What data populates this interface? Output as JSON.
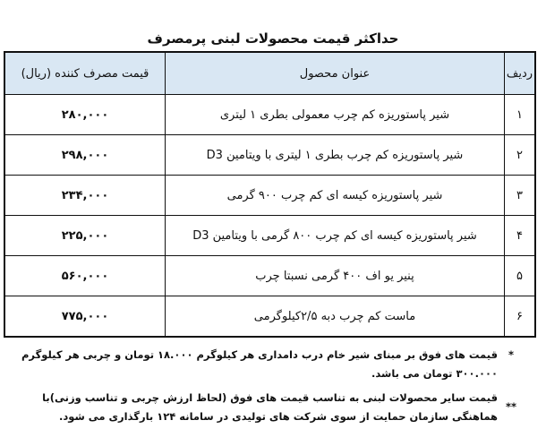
{
  "title": "حداکثر قیمت محصولات لبنی پرمصرف",
  "headers": {
    "row": "ردیف",
    "product": "عنوان محصول",
    "price": "قیمت مصرف کننده (ریال)"
  },
  "rows": [
    {
      "n": "۱",
      "product": "شیر پاستوریزه کم چرب معمولی بطری ۱ لیتری",
      "price": "۲۸۰,۰۰۰"
    },
    {
      "n": "۲",
      "product": "شیر پاستوریزه کم چرب  بطری ۱ لیتری با ویتامین D3",
      "price": "۲۹۸,۰۰۰"
    },
    {
      "n": "۳",
      "product": "شیر پاستوریزه کیسه ای کم چرب ۹۰۰ گرمی",
      "price": "۲۳۴,۰۰۰"
    },
    {
      "n": "۴",
      "product": "شیر پاستوریزه کیسه ای کم چرب ۸۰۰ گرمی  با ویتامین D3",
      "price": "۲۲۵,۰۰۰"
    },
    {
      "n": "۵",
      "product": "پنیر یو اف ۴۰۰ گرمی نسبتا چرب",
      "price": "۵۶۰,۰۰۰"
    },
    {
      "n": "۶",
      "product": "ماست کم چرب دبه ۲/۵کیلوگرمی",
      "price": "۷۷۵,۰۰۰"
    }
  ],
  "notes": [
    {
      "mark": "*",
      "text": "قیمت های فوق بر مبنای شیر خام درب دامداری هر کیلوگرم ۱۸.۰۰۰ تومان و چربی هر کیلوگرم ۳۰۰.۰۰۰ تومان می باشد."
    },
    {
      "mark": "**",
      "text": "قیمت سایر محصولات لبنی به تناسب قیمت های فوق (لحاظ ارزش چربی و تناسب وزنی)با هماهنگی سازمان حمایت از سوی شرکت های تولیدی در سامانه ۱۲۴ بارگذاری می شود."
    }
  ]
}
